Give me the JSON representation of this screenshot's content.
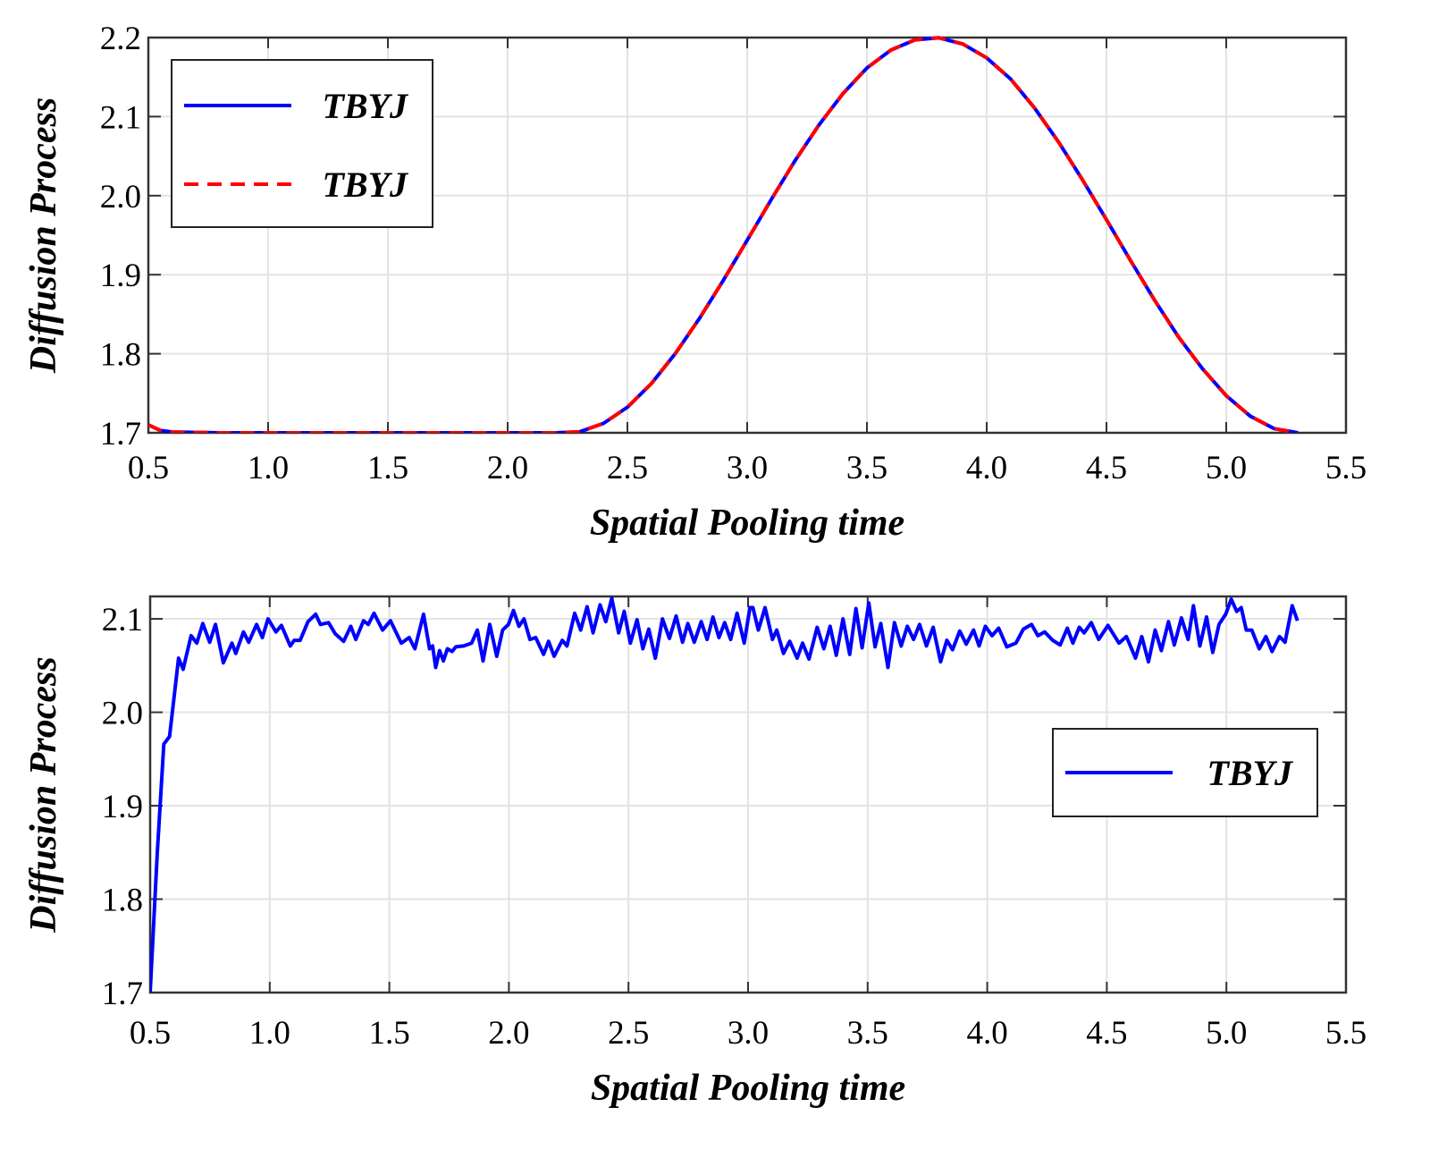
{
  "chart_data": [
    {
      "type": "line",
      "xlabel": "Spatial Pooling time",
      "ylabel": "Diffusion Process",
      "xlim": [
        0.5,
        5.5
      ],
      "ylim": [
        1.7,
        2.2
      ],
      "xticks": [
        "0.5",
        "1.0",
        "1.5",
        "2.0",
        "2.5",
        "3.0",
        "3.5",
        "4.0",
        "4.5",
        "5.0",
        "5.5"
      ],
      "yticks": [
        "1.7",
        "1.8",
        "1.9",
        "2.0",
        "2.1",
        "2.2"
      ],
      "grid": true,
      "legend_placement": "top-left",
      "x": [
        0.5,
        0.55,
        0.6,
        0.8,
        1.0,
        1.2,
        1.4,
        1.6,
        1.8,
        2.0,
        2.2,
        2.3,
        2.4,
        2.5,
        2.6,
        2.7,
        2.8,
        2.9,
        3.0,
        3.1,
        3.2,
        3.3,
        3.4,
        3.5,
        3.6,
        3.7,
        3.8,
        3.9,
        4.0,
        4.1,
        4.2,
        4.3,
        4.4,
        4.5,
        4.6,
        4.7,
        4.8,
        4.9,
        5.0,
        5.1,
        5.2,
        5.3
      ],
      "series": [
        {
          "name": "TBYJ",
          "color": "#0000ff",
          "style": "solid",
          "values": [
            1.71,
            1.703,
            1.701,
            1.7,
            1.7,
            1.7,
            1.7,
            1.7,
            1.7,
            1.7,
            1.7,
            1.7013,
            1.7119,
            1.7324,
            1.7622,
            1.8002,
            1.8443,
            1.8926,
            1.9436,
            1.9948,
            2.0443,
            2.0896,
            2.1292,
            2.1615,
            2.1842,
            2.1971,
            2.1997,
            2.1919,
            2.1743,
            2.1475,
            2.1107,
            2.0679,
            2.02,
            1.9696,
            1.9182,
            1.8682,
            1.8216,
            1.7813,
            1.747,
            1.7211,
            1.7053,
            1.7
          ]
        },
        {
          "name": "TBYJ",
          "color": "#ff0000",
          "style": "dashed",
          "values": [
            1.71,
            1.703,
            1.701,
            1.7,
            1.7,
            1.7,
            1.7,
            1.7,
            1.7,
            1.7,
            1.7,
            1.7013,
            1.7119,
            1.7324,
            1.7622,
            1.8002,
            1.8443,
            1.8926,
            1.9436,
            1.9948,
            2.0443,
            2.0896,
            2.1292,
            2.1615,
            2.1842,
            2.1971,
            2.1997,
            2.1919,
            2.1743,
            2.1475,
            2.1107,
            2.0679,
            2.02,
            1.9696,
            1.9182,
            1.8682,
            1.8216,
            1.7813,
            1.747,
            1.7211,
            1.7053,
            1.7
          ]
        }
      ]
    },
    {
      "type": "line",
      "xlabel": "Spatial Pooling time",
      "ylabel": "Diffusion Process",
      "xlim": [
        0.5,
        5.5
      ],
      "ylim": [
        1.7,
        2.124
      ],
      "xticks": [
        "0.5",
        "1.0",
        "1.5",
        "2.0",
        "2.5",
        "3.0",
        "3.5",
        "4.0",
        "4.5",
        "5.0",
        "5.5"
      ],
      "yticks": [
        "1.7",
        "1.8",
        "1.9",
        "2.0",
        "2.1"
      ],
      "grid": true,
      "legend_placement": "right",
      "series": [
        {
          "name": "TBYJ",
          "color": "#0000ff",
          "style": "solid",
          "points": [
            [
              0.5,
              1.7
            ],
            [
              0.53,
              1.85
            ],
            [
              0.557,
              1.966
            ],
            [
              0.581,
              1.974
            ],
            [
              0.619,
              2.058
            ],
            [
              0.638,
              2.046
            ],
            [
              0.671,
              2.082
            ],
            [
              0.695,
              2.074
            ],
            [
              0.72,
              2.095
            ],
            [
              0.749,
              2.075
            ],
            [
              0.773,
              2.094
            ],
            [
              0.806,
              2.053
            ],
            [
              0.842,
              2.074
            ],
            [
              0.858,
              2.063
            ],
            [
              0.89,
              2.086
            ],
            [
              0.912,
              2.075
            ],
            [
              0.945,
              2.094
            ],
            [
              0.969,
              2.08
            ],
            [
              0.993,
              2.1
            ],
            [
              1.026,
              2.086
            ],
            [
              1.049,
              2.093
            ],
            [
              1.086,
              2.071
            ],
            [
              1.102,
              2.077
            ],
            [
              1.127,
              2.077
            ],
            [
              1.16,
              2.097
            ],
            [
              1.192,
              2.105
            ],
            [
              1.212,
              2.094
            ],
            [
              1.246,
              2.096
            ],
            [
              1.274,
              2.084
            ],
            [
              1.309,
              2.076
            ],
            [
              1.339,
              2.092
            ],
            [
              1.36,
              2.078
            ],
            [
              1.392,
              2.098
            ],
            [
              1.412,
              2.094
            ],
            [
              1.436,
              2.106
            ],
            [
              1.472,
              2.088
            ],
            [
              1.505,
              2.098
            ],
            [
              1.55,
              2.074
            ],
            [
              1.583,
              2.08
            ],
            [
              1.607,
              2.068
            ],
            [
              1.643,
              2.105
            ],
            [
              1.668,
              2.068
            ],
            [
              1.681,
              2.071
            ],
            [
              1.694,
              2.048
            ],
            [
              1.71,
              2.066
            ],
            [
              1.726,
              2.055
            ],
            [
              1.743,
              2.068
            ],
            [
              1.762,
              2.065
            ],
            [
              1.778,
              2.07
            ],
            [
              1.811,
              2.071
            ],
            [
              1.844,
              2.074
            ],
            [
              1.868,
              2.088
            ],
            [
              1.892,
              2.055
            ],
            [
              1.92,
              2.094
            ],
            [
              1.949,
              2.06
            ],
            [
              1.974,
              2.088
            ],
            [
              1.998,
              2.094
            ],
            [
              2.019,
              2.109
            ],
            [
              2.042,
              2.092
            ],
            [
              2.063,
              2.1
            ],
            [
              2.088,
              2.078
            ],
            [
              2.112,
              2.08
            ],
            [
              2.145,
              2.062
            ],
            [
              2.166,
              2.076
            ],
            [
              2.189,
              2.06
            ],
            [
              2.223,
              2.077
            ],
            [
              2.243,
              2.071
            ],
            [
              2.275,
              2.106
            ],
            [
              2.3,
              2.088
            ],
            [
              2.327,
              2.113
            ],
            [
              2.352,
              2.085
            ],
            [
              2.381,
              2.115
            ],
            [
              2.405,
              2.097
            ],
            [
              2.43,
              2.122
            ],
            [
              2.459,
              2.085
            ],
            [
              2.482,
              2.108
            ],
            [
              2.508,
              2.074
            ],
            [
              2.536,
              2.099
            ],
            [
              2.56,
              2.068
            ],
            [
              2.585,
              2.089
            ],
            [
              2.612,
              2.058
            ],
            [
              2.642,
              2.1
            ],
            [
              2.671,
              2.079
            ],
            [
              2.699,
              2.103
            ],
            [
              2.726,
              2.075
            ],
            [
              2.748,
              2.095
            ],
            [
              2.775,
              2.075
            ],
            [
              2.804,
              2.097
            ],
            [
              2.829,
              2.078
            ],
            [
              2.853,
              2.102
            ],
            [
              2.878,
              2.08
            ],
            [
              2.902,
              2.096
            ],
            [
              2.927,
              2.078
            ],
            [
              2.954,
              2.106
            ],
            [
              2.984,
              2.074
            ],
            [
              3.008,
              2.112
            ],
            [
              3.02,
              2.112
            ],
            [
              3.043,
              2.088
            ],
            [
              3.071,
              2.112
            ],
            [
              3.102,
              2.078
            ],
            [
              3.12,
              2.088
            ],
            [
              3.148,
              2.063
            ],
            [
              3.174,
              2.076
            ],
            [
              3.205,
              2.058
            ],
            [
              3.228,
              2.074
            ],
            [
              3.255,
              2.057
            ],
            [
              3.289,
              2.091
            ],
            [
              3.317,
              2.068
            ],
            [
              3.343,
              2.092
            ],
            [
              3.369,
              2.061
            ],
            [
              3.397,
              2.1
            ],
            [
              3.425,
              2.062
            ],
            [
              3.451,
              2.111
            ],
            [
              3.477,
              2.069
            ],
            [
              3.505,
              2.117
            ],
            [
              3.531,
              2.07
            ],
            [
              3.555,
              2.095
            ],
            [
              3.585,
              2.048
            ],
            [
              3.612,
              2.096
            ],
            [
              3.64,
              2.071
            ],
            [
              3.666,
              2.092
            ],
            [
              3.692,
              2.078
            ],
            [
              3.717,
              2.094
            ],
            [
              3.746,
              2.071
            ],
            [
              3.774,
              2.091
            ],
            [
              3.805,
              2.054
            ],
            [
              3.831,
              2.077
            ],
            [
              3.855,
              2.067
            ],
            [
              3.885,
              2.087
            ],
            [
              3.912,
              2.073
            ],
            [
              3.943,
              2.088
            ],
            [
              3.966,
              2.071
            ],
            [
              3.992,
              2.092
            ],
            [
              4.02,
              2.082
            ],
            [
              4.048,
              2.09
            ],
            [
              4.082,
              2.07
            ],
            [
              4.12,
              2.074
            ],
            [
              4.151,
              2.089
            ],
            [
              4.185,
              2.094
            ],
            [
              4.212,
              2.082
            ],
            [
              4.24,
              2.086
            ],
            [
              4.274,
              2.077
            ],
            [
              4.305,
              2.072
            ],
            [
              4.335,
              2.09
            ],
            [
              4.358,
              2.074
            ],
            [
              4.385,
              2.091
            ],
            [
              4.405,
              2.085
            ],
            [
              4.435,
              2.096
            ],
            [
              4.466,
              2.078
            ],
            [
              4.505,
              2.093
            ],
            [
              4.551,
              2.074
            ],
            [
              4.582,
              2.081
            ],
            [
              4.62,
              2.058
            ],
            [
              4.646,
              2.081
            ],
            [
              4.674,
              2.054
            ],
            [
              4.702,
              2.088
            ],
            [
              4.728,
              2.066
            ],
            [
              4.758,
              2.097
            ],
            [
              4.782,
              2.072
            ],
            [
              4.812,
              2.101
            ],
            [
              4.84,
              2.078
            ],
            [
              4.862,
              2.114
            ],
            [
              4.889,
              2.071
            ],
            [
              4.917,
              2.102
            ],
            [
              4.943,
              2.064
            ],
            [
              4.969,
              2.094
            ],
            [
              4.997,
              2.105
            ],
            [
              5.02,
              2.121
            ],
            [
              5.043,
              2.108
            ],
            [
              5.062,
              2.112
            ],
            [
              5.083,
              2.088
            ],
            [
              5.106,
              2.088
            ],
            [
              5.137,
              2.068
            ],
            [
              5.165,
              2.081
            ],
            [
              5.191,
              2.065
            ],
            [
              5.222,
              2.081
            ],
            [
              5.245,
              2.075
            ],
            [
              5.275,
              2.114
            ],
            [
              5.297,
              2.098
            ]
          ]
        }
      ]
    }
  ]
}
